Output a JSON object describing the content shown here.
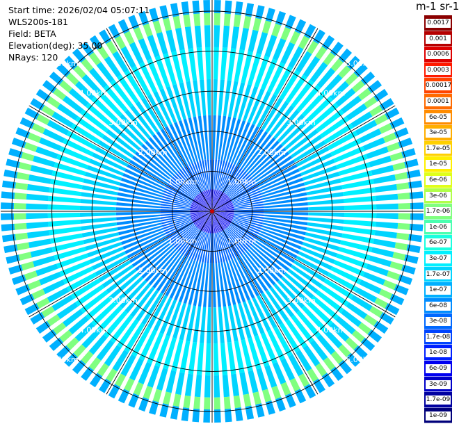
{
  "header": {
    "start_time": "Start time: 2026/02/04 05:07:11",
    "instrument": "WLS200s-181",
    "field": "Field: BETA",
    "elevation": "Elevation(deg): 35.00",
    "nrays": "NRays: 120"
  },
  "colorbar": {
    "units_label": "m-1 sr-1",
    "levels": [
      {
        "label": "0.0017",
        "color": "#8b0000"
      },
      {
        "label": "0.001",
        "color": "#b50000"
      },
      {
        "label": "0.0006",
        "color": "#dd0000"
      },
      {
        "label": "0.0003",
        "color": "#ff1a00"
      },
      {
        "label": "0.00017",
        "color": "#ff4400"
      },
      {
        "label": "0.0001",
        "color": "#ff6a00"
      },
      {
        "label": "6e-05",
        "color": "#ff8c00"
      },
      {
        "label": "3e-05",
        "color": "#ffae00"
      },
      {
        "label": "1.7e-05",
        "color": "#ffd000"
      },
      {
        "label": "1e-05",
        "color": "#ffef00"
      },
      {
        "label": "6e-06",
        "color": "#e0ff1a"
      },
      {
        "label": "3e-06",
        "color": "#b0ff4a"
      },
      {
        "label": "1.7e-06",
        "color": "#80ff80"
      },
      {
        "label": "1e-06",
        "color": "#4affb0"
      },
      {
        "label": "6e-07",
        "color": "#1affe0"
      },
      {
        "label": "3e-07",
        "color": "#00f0ff"
      },
      {
        "label": "1.7e-07",
        "color": "#00d4ff"
      },
      {
        "label": "1e-07",
        "color": "#00b0ff"
      },
      {
        "label": "6e-08",
        "color": "#008cff"
      },
      {
        "label": "3e-08",
        "color": "#0068ff"
      },
      {
        "label": "1.7e-08",
        "color": "#0044ff"
      },
      {
        "label": "1e-08",
        "color": "#0020ff"
      },
      {
        "label": "6e-09",
        "color": "#0000f0"
      },
      {
        "label": "3e-09",
        "color": "#0000c8"
      },
      {
        "label": "1.7e-09",
        "color": "#0000a0"
      },
      {
        "label": "1e-09",
        "color": "#00007a"
      }
    ]
  },
  "chart_data": {
    "type": "heatmap",
    "projection": "polar PPI",
    "nrays": 120,
    "range_rings_km": [
      1,
      2,
      3,
      4,
      5
    ],
    "ring_labels": [
      "1.00km",
      "2.00km",
      "3.00km",
      "4.00km",
      "5.00km"
    ],
    "bands_km": [
      {
        "from": 0.0,
        "to": 0.55,
        "level": "6e-09"
      },
      {
        "from": 0.55,
        "to": 1.3,
        "level": "3e-08"
      },
      {
        "from": 1.3,
        "to": 2.4,
        "level": "6e-08"
      },
      {
        "from": 2.4,
        "to": 3.3,
        "level": "1.7e-07"
      },
      {
        "from": 3.3,
        "to": 4.1,
        "level": "3e-07"
      },
      {
        "from": 4.1,
        "to": 4.65,
        "level": "1.7e-07"
      },
      {
        "from": 4.65,
        "to": 4.95,
        "level": "1.7e-06"
      },
      {
        "from": 4.95,
        "to": 5.3,
        "level": "1e-07"
      }
    ],
    "grid": true
  }
}
